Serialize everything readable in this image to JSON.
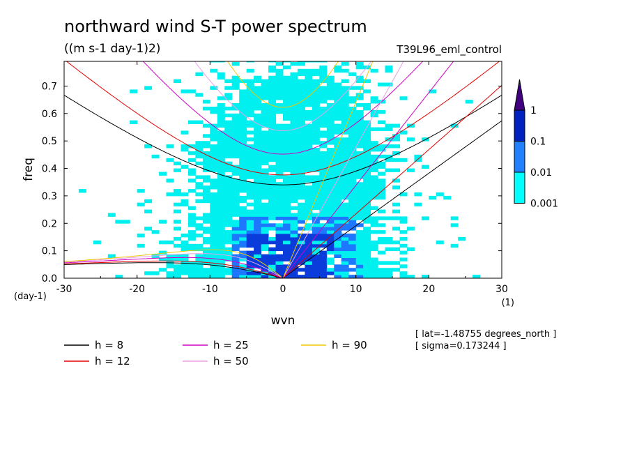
{
  "chart_data": {
    "type": "heatmap",
    "title": "northward wind S-T power spectrum",
    "subtitle": "((m s-1 day-1)2)",
    "run_label": "T39L96_eml_control",
    "xlabel": "wvn",
    "ylabel": "freq",
    "x_unit": "(1)",
    "y_unit": "(day-1)",
    "xlim": [
      -30,
      30
    ],
    "ylim": [
      0,
      0.79
    ],
    "x_ticks": [
      -30,
      -20,
      -10,
      0,
      10,
      20,
      30
    ],
    "x_tick_labels": [
      "-30",
      "-20",
      "-10",
      "0",
      "10",
      "20",
      "30"
    ],
    "y_ticks": [
      0,
      0.1,
      0.2,
      0.3,
      0.4,
      0.5,
      0.6,
      0.7
    ],
    "y_tick_labels": [
      "0.0",
      "0.1",
      "0.2",
      "0.3",
      "0.4",
      "0.5",
      "0.6",
      "0.7"
    ],
    "colorbar": {
      "labels": [
        "1",
        "0.1",
        "0.01",
        "0.001"
      ],
      "levels": [
        0.001,
        0.01,
        0.1,
        1
      ],
      "colors": [
        "#00ffff",
        "#2080ff",
        "#0020c0",
        "#400080"
      ]
    },
    "shading_colors": {
      "low": "#00f0f0",
      "mid": "#1e78ff",
      "high": "#0a3cdc"
    },
    "series": [
      {
        "name": "h =  8",
        "equivalent_depth_m": 8,
        "color": "#000000"
      },
      {
        "name": "h = 12",
        "equivalent_depth_m": 12,
        "color": "#e00000"
      },
      {
        "name": "h = 25",
        "equivalent_depth_m": 25,
        "color": "#d000c0"
      },
      {
        "name": "h = 50",
        "equivalent_depth_m": 50,
        "color": "#e8a0e8"
      },
      {
        "name": "h = 90",
        "equivalent_depth_m": 90,
        "color": "#f0c800"
      }
    ],
    "annotations": [
      "[ lat=-1.48755 degrees_north ]",
      "[ sigma=0.173244 ]"
    ],
    "grid": false,
    "legend_position": "bottom"
  }
}
